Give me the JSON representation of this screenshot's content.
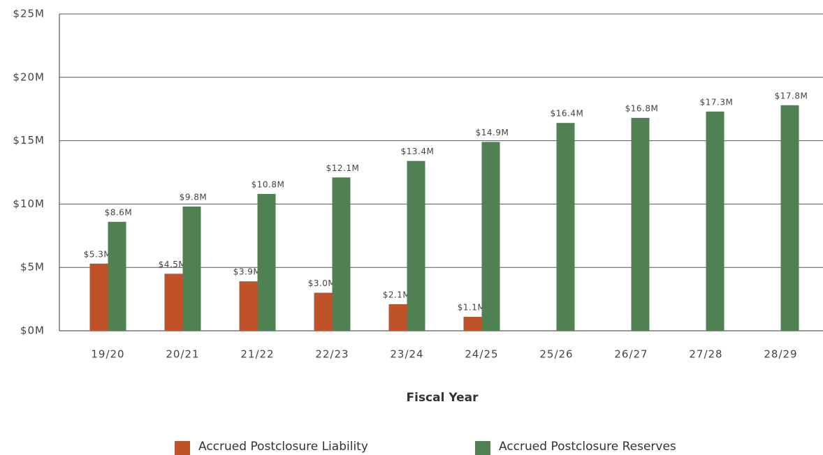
{
  "chart_data": {
    "type": "bar",
    "x_label": "Fiscal Year",
    "categories": [
      "19/20",
      "20/21",
      "21/22",
      "22/23",
      "23/24",
      "24/25",
      "25/26",
      "26/27",
      "27/28",
      "28/29"
    ],
    "series": [
      {
        "name": "Accrued Postclosure Liability",
        "color": "#c0522a",
        "values": [
          5.3,
          4.5,
          3.9,
          3.0,
          2.1,
          1.1,
          null,
          null,
          null,
          null
        ],
        "value_labels": [
          "$5.3M",
          "$4.5M",
          "$3.9M",
          "$3.0M",
          "$2.1M",
          "$1.1M",
          null,
          null,
          null,
          null
        ]
      },
      {
        "name": "Accrued Postclosure Reserves",
        "color": "#4f8152",
        "values": [
          8.6,
          9.8,
          10.8,
          12.1,
          13.4,
          14.9,
          16.4,
          16.8,
          17.3,
          17.8
        ],
        "value_labels": [
          "$8.6M",
          "$9.8M",
          "$10.8M",
          "$12.1M",
          "$13.4M",
          "$14.9M",
          "$16.4M",
          "$16.8M",
          "$17.3M",
          "$17.8M"
        ]
      }
    ],
    "ylim": [
      0,
      25
    ],
    "yticks": [
      {
        "value": 0,
        "label": "$0M"
      },
      {
        "value": 5,
        "label": "$5M"
      },
      {
        "value": 10,
        "label": "$10M"
      },
      {
        "value": 15,
        "label": "$15M"
      },
      {
        "value": 20,
        "label": "$20M"
      },
      {
        "value": 25,
        "label": "$25M"
      }
    ],
    "grid": true,
    "legend": "bottom"
  }
}
